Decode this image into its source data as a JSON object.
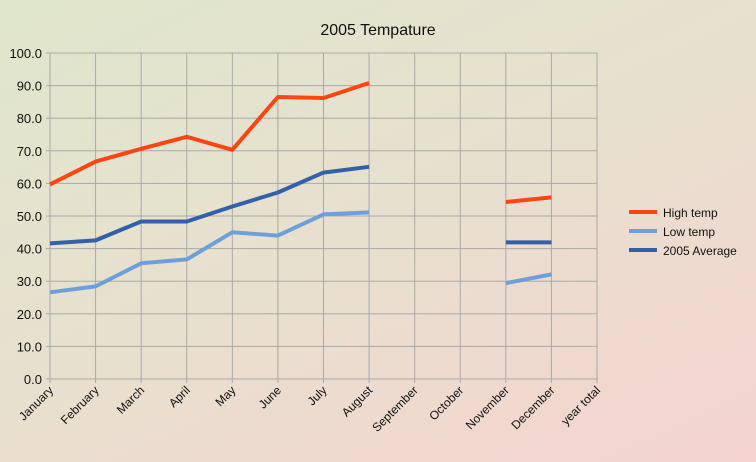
{
  "chart_data": {
    "type": "line",
    "title": "2005 Tempature",
    "xlabel": "",
    "ylabel": "",
    "ylim": [
      0,
      100
    ],
    "yticks": [
      "0.0",
      "10.0",
      "20.0",
      "30.0",
      "40.0",
      "50.0",
      "60.0",
      "70.0",
      "80.0",
      "90.0",
      "100.0"
    ],
    "grid": true,
    "legend_position": "right",
    "categories": [
      "January",
      "February",
      "March",
      "April",
      "May",
      "June",
      "July",
      "August",
      "September",
      "October",
      "November",
      "December",
      "year total"
    ],
    "series": [
      {
        "name": "High temp",
        "color": "#ff4512",
        "values": [
          59.7,
          66.7,
          70.6,
          74.3,
          70.3,
          86.5,
          86.2,
          90.8,
          null,
          null,
          54.3,
          55.7,
          null
        ]
      },
      {
        "name": "Low temp",
        "color": "#6f9fdb",
        "values": [
          26.6,
          28.4,
          35.5,
          36.7,
          45.0,
          44.0,
          50.5,
          51.1,
          null,
          null,
          29.4,
          32.1,
          null
        ]
      },
      {
        "name": "2005 Average",
        "color": "#3360a8",
        "values": [
          41.6,
          42.5,
          48.3,
          48.3,
          52.9,
          57.2,
          63.3,
          65.1,
          null,
          null,
          41.9,
          41.9,
          null
        ]
      }
    ]
  }
}
